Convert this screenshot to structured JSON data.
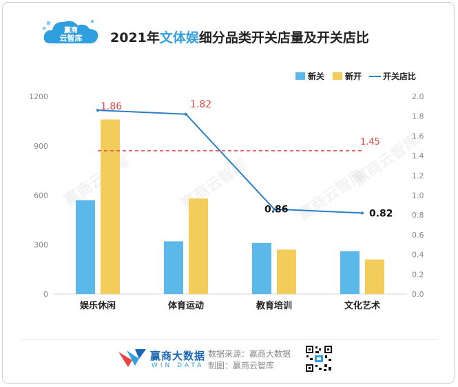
{
  "header": {
    "brand_logo_text_1": "赢商",
    "brand_logo_text_2": "云智库",
    "title_prefix": "2021年",
    "title_highlight": "文体娱",
    "title_suffix": "细分品类开关店量及开关店比"
  },
  "legend": {
    "items": [
      "新关",
      "新开",
      "开关店比"
    ]
  },
  "watermarks": [
    "赢商云智库",
    "赢商云智库",
    "赢商云智库",
    "赢商云智库"
  ],
  "footer": {
    "brand_name": "赢商大数据",
    "brand_sub": "WIN DATA",
    "source_line": "数据来源：赢商大数据",
    "maker_line": "制图：赢商云智库"
  },
  "colors": {
    "closed": "#5bb8e8",
    "opened": "#f2cd5c",
    "ratio_line": "#2a7fc9",
    "average_line": "#e84545",
    "title_highlight": "#2f9fe0"
  },
  "chart_data": {
    "type": "bar",
    "categories": [
      "娱乐休闲",
      "体育运动",
      "教育培训",
      "文化艺术"
    ],
    "series": [
      {
        "name": "新关",
        "axis": "left",
        "values": [
          570,
          320,
          310,
          260
        ]
      },
      {
        "name": "新开",
        "axis": "left",
        "values": [
          1060,
          580,
          270,
          210
        ]
      },
      {
        "name": "开关店比",
        "type": "line",
        "axis": "right",
        "values": [
          1.86,
          1.82,
          0.86,
          0.82
        ],
        "labels": [
          "1.86",
          "1.82",
          "0.86",
          "0.82"
        ]
      }
    ],
    "reference_line": {
      "value": 1.45,
      "axis": "right",
      "label": "1.45",
      "style": "dashed"
    },
    "left_axis": {
      "ylim": [
        0,
        1200
      ],
      "ticks": [
        "0",
        "300",
        "600",
        "900",
        "1200"
      ]
    },
    "right_axis": {
      "ylim": [
        0,
        2.0
      ],
      "ticks": [
        "0.0",
        "0.2",
        "0.4",
        "0.6",
        "0.8",
        "1.0",
        "1.2",
        "1.4",
        "1.6",
        "1.8",
        "2.0"
      ]
    },
    "legend_position": "top-right",
    "grid": false
  }
}
